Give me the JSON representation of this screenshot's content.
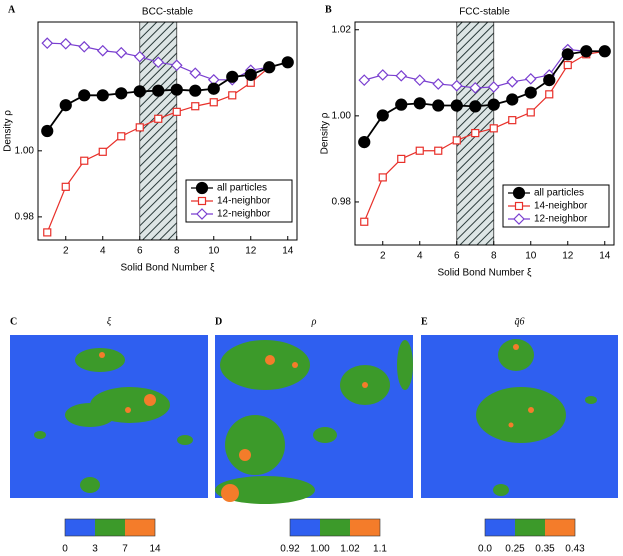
{
  "chart_data": [
    {
      "type": "line",
      "panel": "A",
      "title": "BCC-stable",
      "xlabel": "Solid Bond Number  ξ",
      "ylabel": "Density  ρ",
      "x": [
        1,
        2,
        3,
        4,
        5,
        6,
        7,
        8,
        9,
        10,
        11,
        12,
        13,
        14
      ],
      "series": [
        {
          "name": "all particles",
          "color": "#000000",
          "marker": "circle",
          "filled": true,
          "values": [
            1.006,
            1.0138,
            1.0168,
            1.0168,
            1.0174,
            1.018,
            1.0182,
            1.0185,
            1.0182,
            1.0188,
            1.0224,
            1.023,
            1.0253,
            1.0268
          ]
        },
        {
          "name": "14-neighbor",
          "color": "#e8302a",
          "marker": "square",
          "filled": false,
          "values": [
            0.9753,
            0.9891,
            0.997,
            0.9997,
            1.0044,
            1.0071,
            1.0097,
            1.0118,
            1.0135,
            1.0147,
            1.0168,
            1.0206,
            1.0253,
            1.0268
          ]
        },
        {
          "name": "12-neighbor",
          "color": "#7a3fd0",
          "marker": "diamond",
          "filled": false,
          "values": [
            1.0326,
            1.0324,
            1.0315,
            1.0303,
            1.0297,
            1.0285,
            1.0268,
            1.0259,
            1.0235,
            1.0215,
            1.0215,
            1.0244,
            1.0253,
            1.0268
          ]
        }
      ],
      "xlim": [
        0.5,
        14.5
      ],
      "ylim": [
        0.973,
        1.039
      ],
      "xticks": [
        2,
        4,
        6,
        8,
        10,
        12,
        14
      ],
      "yticks": [
        0.98,
        {
          "value": 1,
          "label": "1.00"
        }
      ],
      "band": [
        6,
        8
      ],
      "legend": "lower right"
    },
    {
      "type": "line",
      "panel": "B",
      "title": "FCC-stable",
      "xlabel": "Solid Bond Number  ξ",
      "ylabel": "Density  ρ",
      "x": [
        1,
        2,
        3,
        4,
        5,
        6,
        7,
        8,
        9,
        10,
        11,
        12,
        13,
        14
      ],
      "series": [
        {
          "name": "all particles",
          "color": "#000000",
          "marker": "circle",
          "filled": true,
          "values": [
            0.9939,
            1.0001,
            1.0026,
            1.0029,
            1.0024,
            1.0024,
            1.0022,
            1.0026,
            1.0038,
            1.0054,
            1.0083,
            1.0143,
            1.015,
            1.015
          ]
        },
        {
          "name": "14-neighbor",
          "color": "#e8302a",
          "marker": "square",
          "filled": false,
          "values": [
            0.9754,
            0.9857,
            0.99,
            0.9919,
            0.9919,
            0.9943,
            0.996,
            0.9971,
            0.999,
            1.0008,
            1.005,
            1.0118,
            1.0143,
            1.015
          ]
        },
        {
          "name": "12-neighbor",
          "color": "#7a3fd0",
          "marker": "diamond",
          "filled": false,
          "values": [
            1.0083,
            1.0095,
            1.0093,
            1.0083,
            1.0074,
            1.007,
            1.0065,
            1.0067,
            1.0079,
            1.0086,
            1.0095,
            1.0154,
            1.015,
            1.015
          ]
        }
      ],
      "xlim": [
        0.5,
        14.5
      ],
      "ylim": [
        0.97,
        1.0218
      ],
      "xticks": [
        2,
        4,
        6,
        8,
        10,
        12,
        14
      ],
      "yticks": [
        0.98,
        {
          "value": 1,
          "label": "1.00"
        },
        1.02
      ],
      "band": [
        6,
        8
      ],
      "legend": "lower right"
    }
  ],
  "maps": [
    {
      "panel": "C",
      "title": "ξ",
      "colors": [
        "#2f5ff0",
        "#3c9a2a",
        "#f47c2a"
      ],
      "ticks": [
        0,
        3,
        7,
        14
      ]
    },
    {
      "panel": "D",
      "title": "ρ",
      "colors": [
        "#2f5ff0",
        "#3c9a2a",
        "#f47c2a"
      ],
      "ticks": [
        0.92,
        {
          "value": 1,
          "label": "1.00"
        },
        1.02,
        1.1
      ]
    },
    {
      "panel": "E",
      "title": "q̄6",
      "colors": [
        "#2f5ff0",
        "#3c9a2a",
        "#f47c2a"
      ],
      "ticks": [
        {
          "value": 0,
          "label": "0.0"
        },
        0.25,
        0.35,
        0.43
      ]
    }
  ]
}
